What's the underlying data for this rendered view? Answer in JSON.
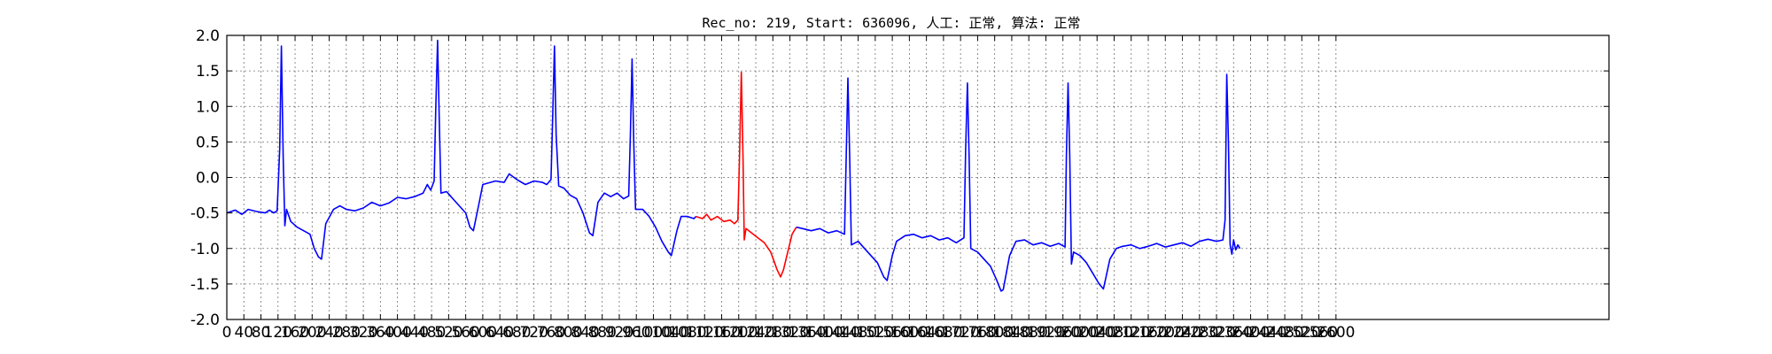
{
  "chart_data": {
    "type": "line",
    "title": "Rec_no: 219, Start: 636096, 人工: 正常, 算法: 正常",
    "xlabel": "",
    "ylabel": "",
    "xlim": [
      0,
      3240
    ],
    "ylim": [
      -2.0,
      2.0
    ],
    "grid": true,
    "y_ticks": [
      "-2.0",
      "-1.5",
      "-1.0",
      "-0.5",
      "0.0",
      "0.5",
      "1.0",
      "1.5",
      "2.0"
    ],
    "x_ticks": [
      0,
      40,
      80,
      120,
      160,
      200,
      240,
      280,
      320,
      360,
      400,
      440,
      480,
      520,
      560,
      600,
      640,
      680,
      720,
      760,
      800,
      840,
      880,
      920,
      960,
      1000,
      1040,
      1080,
      1120,
      1160,
      1200,
      1240,
      1280,
      1320,
      1360,
      1400,
      1440,
      1480,
      1520,
      1560,
      1600,
      1640,
      1680,
      1720,
      1760,
      1800,
      1840,
      1880,
      1920,
      1960,
      2000,
      2040,
      2080,
      2120,
      2160,
      2200,
      2240,
      2280,
      2320,
      2360,
      2400,
      2440,
      2480,
      2520,
      2560,
      2600
    ],
    "series": [
      {
        "color": "#0000ff",
        "points": [
          [
            0,
            -0.5
          ],
          [
            20,
            -0.46
          ],
          [
            35,
            -0.52
          ],
          [
            50,
            -0.45
          ],
          [
            70,
            -0.48
          ],
          [
            90,
            -0.5
          ],
          [
            100,
            -0.46
          ],
          [
            110,
            -0.5
          ],
          [
            118,
            -0.47
          ],
          [
            124,
            0.4
          ],
          [
            128,
            1.85
          ],
          [
            132,
            0.3
          ],
          [
            136,
            -0.68
          ],
          [
            140,
            -0.45
          ],
          [
            150,
            -0.62
          ],
          [
            165,
            -0.7
          ],
          [
            180,
            -0.75
          ],
          [
            195,
            -0.8
          ],
          [
            205,
            -1.0
          ],
          [
            215,
            -1.12
          ],
          [
            222,
            -1.15
          ],
          [
            232,
            -0.65
          ],
          [
            250,
            -0.45
          ],
          [
            265,
            -0.4
          ],
          [
            280,
            -0.45
          ],
          [
            300,
            -0.47
          ],
          [
            320,
            -0.43
          ],
          [
            340,
            -0.35
          ],
          [
            360,
            -0.4
          ],
          [
            380,
            -0.36
          ],
          [
            400,
            -0.28
          ],
          [
            420,
            -0.3
          ],
          [
            440,
            -0.27
          ],
          [
            460,
            -0.22
          ],
          [
            470,
            -0.1
          ],
          [
            478,
            -0.18
          ],
          [
            486,
            -0.05
          ],
          [
            490,
            1.0
          ],
          [
            494,
            1.93
          ],
          [
            498,
            0.8
          ],
          [
            502,
            -0.22
          ],
          [
            515,
            -0.2
          ],
          [
            530,
            -0.3
          ],
          [
            545,
            -0.4
          ],
          [
            560,
            -0.5
          ],
          [
            570,
            -0.7
          ],
          [
            578,
            -0.75
          ],
          [
            590,
            -0.4
          ],
          [
            600,
            -0.1
          ],
          [
            630,
            -0.05
          ],
          [
            650,
            -0.07
          ],
          [
            662,
            0.05
          ],
          [
            680,
            -0.03
          ],
          [
            700,
            -0.1
          ],
          [
            720,
            -0.05
          ],
          [
            740,
            -0.07
          ],
          [
            750,
            -0.1
          ],
          [
            760,
            -0.03
          ],
          [
            764,
            0.9
          ],
          [
            768,
            1.85
          ],
          [
            772,
            0.6
          ],
          [
            778,
            -0.12
          ],
          [
            790,
            -0.15
          ],
          [
            805,
            -0.25
          ],
          [
            820,
            -0.3
          ],
          [
            835,
            -0.5
          ],
          [
            850,
            -0.78
          ],
          [
            858,
            -0.82
          ],
          [
            870,
            -0.35
          ],
          [
            885,
            -0.22
          ],
          [
            900,
            -0.27
          ],
          [
            915,
            -0.22
          ],
          [
            930,
            -0.3
          ],
          [
            942,
            -0.26
          ],
          [
            946,
            0.6
          ],
          [
            950,
            1.67
          ],
          [
            954,
            0.5
          ],
          [
            958,
            -0.45
          ],
          [
            975,
            -0.45
          ],
          [
            990,
            -0.55
          ],
          [
            1005,
            -0.7
          ],
          [
            1020,
            -0.9
          ],
          [
            1035,
            -1.05
          ],
          [
            1042,
            -1.1
          ],
          [
            1055,
            -0.75
          ],
          [
            1065,
            -0.55
          ],
          [
            1080,
            -0.55
          ],
          [
            1095,
            -0.58
          ],
          [
            1100,
            -0.55
          ]
        ]
      },
      {
        "color": "#ff0000",
        "points": [
          [
            1100,
            -0.55
          ],
          [
            1115,
            -0.58
          ],
          [
            1125,
            -0.52
          ],
          [
            1135,
            -0.6
          ],
          [
            1150,
            -0.55
          ],
          [
            1165,
            -0.62
          ],
          [
            1180,
            -0.6
          ],
          [
            1190,
            -0.65
          ],
          [
            1198,
            -0.6
          ],
          [
            1202,
            0.3
          ],
          [
            1206,
            1.48
          ],
          [
            1210,
            0.3
          ],
          [
            1213,
            -0.88
          ],
          [
            1217,
            -0.72
          ],
          [
            1230,
            -0.78
          ],
          [
            1245,
            -0.85
          ],
          [
            1260,
            -0.92
          ],
          [
            1275,
            -1.05
          ],
          [
            1290,
            -1.3
          ],
          [
            1298,
            -1.4
          ],
          [
            1305,
            -1.3
          ],
          [
            1315,
            -1.05
          ],
          [
            1325,
            -0.8
          ],
          [
            1335,
            -0.7
          ]
        ]
      },
      {
        "color": "#0000ff",
        "points": [
          [
            1335,
            -0.7
          ],
          [
            1350,
            -0.72
          ],
          [
            1370,
            -0.75
          ],
          [
            1390,
            -0.72
          ],
          [
            1410,
            -0.78
          ],
          [
            1430,
            -0.75
          ],
          [
            1448,
            -0.8
          ],
          [
            1452,
            0.3
          ],
          [
            1456,
            1.4
          ],
          [
            1460,
            0.3
          ],
          [
            1464,
            -0.95
          ],
          [
            1480,
            -0.9
          ],
          [
            1495,
            -1.0
          ],
          [
            1510,
            -1.1
          ],
          [
            1525,
            -1.2
          ],
          [
            1540,
            -1.4
          ],
          [
            1548,
            -1.45
          ],
          [
            1560,
            -1.1
          ],
          [
            1570,
            -0.9
          ],
          [
            1590,
            -0.82
          ],
          [
            1610,
            -0.8
          ],
          [
            1630,
            -0.85
          ],
          [
            1650,
            -0.82
          ],
          [
            1670,
            -0.88
          ],
          [
            1690,
            -0.85
          ],
          [
            1710,
            -0.92
          ],
          [
            1728,
            -0.85
          ],
          [
            1732,
            0.4
          ],
          [
            1736,
            1.33
          ],
          [
            1740,
            0.3
          ],
          [
            1744,
            -1.0
          ],
          [
            1760,
            -1.05
          ],
          [
            1775,
            -1.15
          ],
          [
            1790,
            -1.25
          ],
          [
            1805,
            -1.45
          ],
          [
            1815,
            -1.6
          ],
          [
            1820,
            -1.58
          ],
          [
            1835,
            -1.1
          ],
          [
            1850,
            -0.9
          ],
          [
            1870,
            -0.88
          ],
          [
            1890,
            -0.95
          ],
          [
            1910,
            -0.92
          ],
          [
            1930,
            -0.97
          ],
          [
            1950,
            -0.93
          ],
          [
            1965,
            -0.98
          ],
          [
            1968,
            0.3
          ],
          [
            1972,
            1.33
          ],
          [
            1976,
            0.3
          ],
          [
            1980,
            -1.22
          ],
          [
            1985,
            -1.05
          ],
          [
            2000,
            -1.1
          ],
          [
            2015,
            -1.2
          ],
          [
            2030,
            -1.35
          ],
          [
            2045,
            -1.5
          ],
          [
            2055,
            -1.57
          ],
          [
            2070,
            -1.15
          ],
          [
            2085,
            -1.0
          ],
          [
            2100,
            -0.97
          ],
          [
            2120,
            -0.95
          ],
          [
            2140,
            -1.0
          ],
          [
            2160,
            -0.97
          ],
          [
            2180,
            -0.93
          ],
          [
            2200,
            -0.98
          ],
          [
            2220,
            -0.95
          ],
          [
            2240,
            -0.92
          ],
          [
            2260,
            -0.97
          ],
          [
            2280,
            -0.9
          ],
          [
            2300,
            -0.87
          ],
          [
            2320,
            -0.9
          ],
          [
            2335,
            -0.88
          ],
          [
            2340,
            -0.6
          ],
          [
            2344,
            1.45
          ],
          [
            2348,
            0.5
          ],
          [
            2352,
            -0.95
          ],
          [
            2356,
            -1.08
          ],
          [
            2360,
            -0.88
          ],
          [
            2365,
            -1.02
          ],
          [
            2370,
            -0.95
          ],
          [
            2375,
            -1.0
          ]
        ]
      }
    ]
  }
}
